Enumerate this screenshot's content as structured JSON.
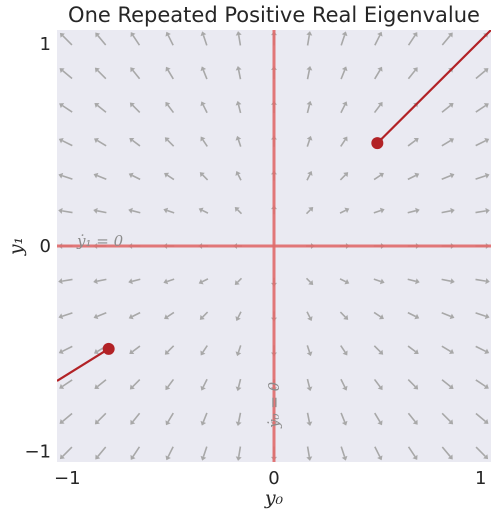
{
  "chart_data": {
    "type": "quiver",
    "title": "One Repeated Positive Real Eigenvalue",
    "xlabel": "y₀",
    "ylabel": "y₁",
    "xlim": [
      -1.05,
      1.05
    ],
    "ylim": [
      -1.05,
      1.05
    ],
    "xticks": [
      -1,
      0,
      1
    ],
    "yticks": [
      -1,
      0,
      1
    ],
    "xtick_labels": [
      "−1",
      "0",
      "1"
    ],
    "ytick_labels": [
      "−1",
      "0",
      "1"
    ],
    "grid": false,
    "vector_field": {
      "description_of_field": "radial outward (dy/dt = y)",
      "grid_range": [
        -1,
        1
      ],
      "grid_count": 13
    },
    "nullclines": [
      {
        "name": "ẏ₁ = 0",
        "axis": "y",
        "value": 0
      },
      {
        "name": "ẏ₀ = 0",
        "axis": "x",
        "value": 0
      }
    ],
    "nullcline_color": "#e06a6a",
    "arrow_color": "#a8a8a8",
    "trajectory_color": "#b22226",
    "trajectories": [
      {
        "start": [
          0.5,
          0.5
        ],
        "end": [
          1.05,
          1.05
        ]
      },
      {
        "start": [
          -0.8,
          -0.5
        ],
        "end": [
          -1.05,
          -0.656
        ]
      }
    ],
    "plot_background": "#eaeaf2"
  }
}
